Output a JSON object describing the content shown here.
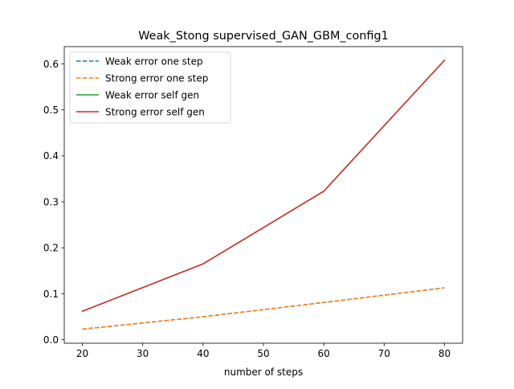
{
  "chart_data": {
    "type": "line",
    "title": "Weak_Stong supervised_GAN_GBM_config1",
    "xlabel": "number of steps",
    "ylabel": "",
    "x": [
      20,
      40,
      60,
      80
    ],
    "xlim": [
      17,
      83
    ],
    "ylim": [
      -0.0075,
      0.6375
    ],
    "xticks": [
      20,
      30,
      40,
      50,
      60,
      70,
      80
    ],
    "yticks": [
      0.0,
      0.1,
      0.2,
      0.3,
      0.4,
      0.5,
      0.6
    ],
    "grid": false,
    "legend_position": "upper-left",
    "series": [
      {
        "name": "Weak error one step",
        "values": [
          0.023,
          0.05,
          0.081,
          0.113
        ],
        "color": "#1f77b4",
        "dash": "dashed"
      },
      {
        "name": "Strong error one step",
        "values": [
          0.023,
          0.05,
          0.081,
          0.113
        ],
        "color": "#ff7f0e",
        "dash": "dashed"
      },
      {
        "name": "Weak error self gen",
        "values": [
          0.062,
          0.165,
          0.323,
          0.608
        ],
        "color": "#2ca02c",
        "dash": "solid"
      },
      {
        "name": "Strong error self gen",
        "values": [
          0.062,
          0.165,
          0.323,
          0.608
        ],
        "color": "#d62728",
        "dash": "solid"
      }
    ]
  }
}
